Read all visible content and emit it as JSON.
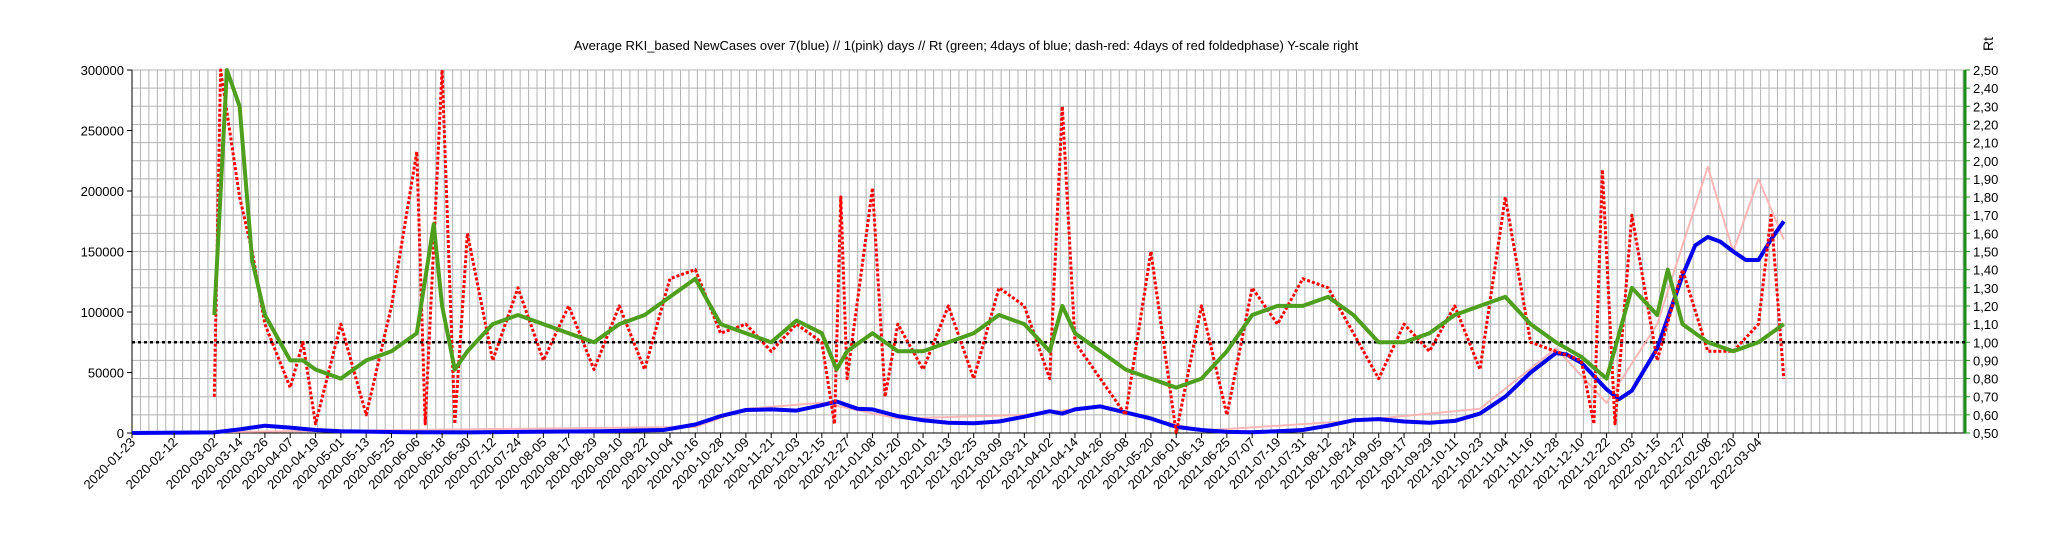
{
  "chart_data": {
    "type": "line",
    "title": "Average RKI_based NewCases over 7(blue) // 1(pink) days //  Rt (green; 4days of blue; dash-red: 4days of red foldedphase) Y-scale right",
    "ylabel_right": "Rt",
    "ylim_left": [
      0,
      300000
    ],
    "ylim_right": [
      0.5,
      2.5
    ],
    "y_ticks_left": [
      "0",
      "50000",
      "100000",
      "150000",
      "200000",
      "250000",
      "300000"
    ],
    "y_ticks_right": [
      "0,50",
      "0,60",
      "0,70",
      "0,80",
      "0,90",
      "1,00",
      "1,10",
      "1,20",
      "1,30",
      "1,40",
      "1,50",
      "1,60",
      "1,70",
      "1,80",
      "1,90",
      "2,00",
      "2,10",
      "2,20",
      "2,30",
      "2,40",
      "2,50"
    ],
    "x_ticks": [
      "2020-01-23",
      "2020-02-12",
      "2020-03-02",
      "2020-03-14",
      "2020-03-26",
      "2020-04-07",
      "2020-04-19",
      "2020-05-01",
      "2020-05-13",
      "2020-05-25",
      "2020-06-06",
      "2020-06-18",
      "2020-06-30",
      "2020-07-12",
      "2020-07-24",
      "2020-08-05",
      "2020-08-17",
      "2020-08-29",
      "2020-09-10",
      "2020-09-22",
      "2020-10-04",
      "2020-10-16",
      "2020-10-28",
      "2020-11-09",
      "2020-11-21",
      "2020-12-03",
      "2020-12-15",
      "2020-12-27",
      "2021-01-08",
      "2021-01-20",
      "2021-02-01",
      "2021-02-13",
      "2021-02-25",
      "2021-03-09",
      "2021-03-21",
      "2021-04-02",
      "2021-04-14",
      "2021-04-26",
      "2021-05-08",
      "2021-05-20",
      "2021-06-01",
      "2021-06-13",
      "2021-06-25",
      "2021-07-07",
      "2021-07-19",
      "2021-07-31",
      "2021-08-12",
      "2021-08-24",
      "2021-09-05",
      "2021-09-17",
      "2021-09-29",
      "2021-10-11",
      "2021-10-23",
      "2021-11-04",
      "2021-11-16",
      "2021-11-28",
      "2021-12-10",
      "2021-12-22",
      "2022-01-03",
      "2022-01-15",
      "2022-01-27",
      "2022-02-08",
      "2022-02-20",
      "2022-03-04"
    ],
    "reference_line_rt": 1.0,
    "grid": true,
    "series": [
      {
        "axis": "left",
        "color": "#0000ee",
        "style": "solid",
        "points": [
          [
            "2020-01-23",
            0
          ],
          [
            "2020-03-02",
            500
          ],
          [
            "2020-03-14",
            3000
          ],
          [
            "2020-03-26",
            6000
          ],
          [
            "2020-04-07",
            4500
          ],
          [
            "2020-04-19",
            2500
          ],
          [
            "2020-05-01",
            1500
          ],
          [
            "2020-06-01",
            700
          ],
          [
            "2020-07-01",
            500
          ],
          [
            "2020-08-01",
            1000
          ],
          [
            "2020-09-01",
            1500
          ],
          [
            "2020-10-01",
            2500
          ],
          [
            "2020-10-16",
            7000
          ],
          [
            "2020-10-28",
            14000
          ],
          [
            "2020-11-09",
            19000
          ],
          [
            "2020-11-21",
            19500
          ],
          [
            "2020-12-03",
            18500
          ],
          [
            "2020-12-15",
            23000
          ],
          [
            "2020-12-22",
            26000
          ],
          [
            "2021-01-01",
            20000
          ],
          [
            "2021-01-08",
            19500
          ],
          [
            "2021-01-20",
            14000
          ],
          [
            "2021-02-01",
            10500
          ],
          [
            "2021-02-13",
            8500
          ],
          [
            "2021-02-25",
            8000
          ],
          [
            "2021-03-09",
            9500
          ],
          [
            "2021-03-21",
            13500
          ],
          [
            "2021-04-02",
            18000
          ],
          [
            "2021-04-08",
            16000
          ],
          [
            "2021-04-14",
            19500
          ],
          [
            "2021-04-26",
            22000
          ],
          [
            "2021-05-08",
            17000
          ],
          [
            "2021-05-20",
            12000
          ],
          [
            "2021-06-01",
            5000
          ],
          [
            "2021-06-13",
            2500
          ],
          [
            "2021-06-25",
            900
          ],
          [
            "2021-07-07",
            700
          ],
          [
            "2021-07-19",
            1500
          ],
          [
            "2021-07-31",
            2500
          ],
          [
            "2021-08-12",
            6000
          ],
          [
            "2021-08-24",
            10500
          ],
          [
            "2021-09-05",
            11500
          ],
          [
            "2021-09-17",
            9500
          ],
          [
            "2021-09-29",
            8500
          ],
          [
            "2021-10-11",
            10000
          ],
          [
            "2021-10-23",
            16000
          ],
          [
            "2021-11-04",
            30000
          ],
          [
            "2021-11-16",
            50000
          ],
          [
            "2021-11-28",
            66000
          ],
          [
            "2021-12-03",
            65000
          ],
          [
            "2021-12-10",
            58000
          ],
          [
            "2021-12-22",
            36000
          ],
          [
            "2021-12-28",
            28000
          ],
          [
            "2022-01-03",
            35000
          ],
          [
            "2022-01-15",
            70000
          ],
          [
            "2022-01-27",
            130000
          ],
          [
            "2022-02-02",
            155000
          ],
          [
            "2022-02-08",
            162000
          ],
          [
            "2022-02-14",
            158000
          ],
          [
            "2022-02-20",
            150000
          ],
          [
            "2022-02-26",
            143000
          ],
          [
            "2022-03-04",
            143000
          ],
          [
            "2022-03-10",
            160000
          ],
          [
            "2022-03-14",
            170000
          ],
          [
            "2022-03-16",
            175000
          ]
        ]
      },
      {
        "axis": "left",
        "color": "#ffb0b0",
        "style": "solid",
        "points": [
          [
            "2020-01-23",
            0
          ],
          [
            "2020-10-16",
            5000
          ],
          [
            "2020-11-09",
            20000
          ],
          [
            "2020-12-15",
            25000
          ],
          [
            "2021-01-20",
            12000
          ],
          [
            "2021-03-21",
            15000
          ],
          [
            "2021-04-26",
            22000
          ],
          [
            "2021-06-13",
            2000
          ],
          [
            "2021-08-24",
            10000
          ],
          [
            "2021-10-23",
            20000
          ],
          [
            "2021-11-28",
            70000
          ],
          [
            "2021-12-22",
            25000
          ],
          [
            "2022-01-15",
            90000
          ],
          [
            "2022-02-08",
            220000
          ],
          [
            "2022-02-20",
            150000
          ],
          [
            "2022-03-04",
            210000
          ],
          [
            "2022-03-16",
            160000
          ]
        ]
      },
      {
        "axis": "right",
        "color": "#4f9f1f",
        "style": "solid",
        "points": [
          [
            "2020-03-02",
            1.15
          ],
          [
            "2020-03-08",
            2.5
          ],
          [
            "2020-03-14",
            2.3
          ],
          [
            "2020-03-20",
            1.45
          ],
          [
            "2020-03-26",
            1.15
          ],
          [
            "2020-04-07",
            0.9
          ],
          [
            "2020-04-13",
            0.9
          ],
          [
            "2020-04-19",
            0.85
          ],
          [
            "2020-05-01",
            0.8
          ],
          [
            "2020-05-13",
            0.9
          ],
          [
            "2020-05-25",
            0.95
          ],
          [
            "2020-06-06",
            1.05
          ],
          [
            "2020-06-14",
            1.65
          ],
          [
            "2020-06-18",
            1.2
          ],
          [
            "2020-06-24",
            0.85
          ],
          [
            "2020-06-30",
            0.95
          ],
          [
            "2020-07-12",
            1.1
          ],
          [
            "2020-07-24",
            1.15
          ],
          [
            "2020-08-05",
            1.1
          ],
          [
            "2020-08-17",
            1.05
          ],
          [
            "2020-08-29",
            1.0
          ],
          [
            "2020-09-10",
            1.1
          ],
          [
            "2020-09-22",
            1.15
          ],
          [
            "2020-10-04",
            1.25
          ],
          [
            "2020-10-16",
            1.35
          ],
          [
            "2020-10-28",
            1.1
          ],
          [
            "2020-11-09",
            1.05
          ],
          [
            "2020-11-21",
            1.0
          ],
          [
            "2020-12-03",
            1.12
          ],
          [
            "2020-12-15",
            1.05
          ],
          [
            "2020-12-22",
            0.85
          ],
          [
            "2020-12-27",
            0.95
          ],
          [
            "2021-01-08",
            1.05
          ],
          [
            "2021-01-20",
            0.95
          ],
          [
            "2021-02-01",
            0.95
          ],
          [
            "2021-02-13",
            1.0
          ],
          [
            "2021-02-25",
            1.05
          ],
          [
            "2021-03-09",
            1.15
          ],
          [
            "2021-03-21",
            1.1
          ],
          [
            "2021-04-02",
            0.95
          ],
          [
            "2021-04-08",
            1.2
          ],
          [
            "2021-04-14",
            1.05
          ],
          [
            "2021-04-26",
            0.95
          ],
          [
            "2021-05-08",
            0.85
          ],
          [
            "2021-05-20",
            0.8
          ],
          [
            "2021-06-01",
            0.75
          ],
          [
            "2021-06-13",
            0.8
          ],
          [
            "2021-06-25",
            0.95
          ],
          [
            "2021-07-07",
            1.15
          ],
          [
            "2021-07-19",
            1.2
          ],
          [
            "2021-07-31",
            1.2
          ],
          [
            "2021-08-12",
            1.25
          ],
          [
            "2021-08-24",
            1.15
          ],
          [
            "2021-09-05",
            1.0
          ],
          [
            "2021-09-17",
            1.0
          ],
          [
            "2021-09-29",
            1.05
          ],
          [
            "2021-10-11",
            1.15
          ],
          [
            "2021-10-23",
            1.2
          ],
          [
            "2021-11-04",
            1.25
          ],
          [
            "2021-11-16",
            1.1
          ],
          [
            "2021-11-28",
            1.0
          ],
          [
            "2021-12-10",
            0.92
          ],
          [
            "2021-12-22",
            0.8
          ],
          [
            "2022-01-03",
            1.3
          ],
          [
            "2022-01-15",
            1.15
          ],
          [
            "2022-01-20",
            1.4
          ],
          [
            "2022-01-27",
            1.1
          ],
          [
            "2022-02-08",
            1.0
          ],
          [
            "2022-02-20",
            0.95
          ],
          [
            "2022-03-04",
            1.0
          ],
          [
            "2022-03-16",
            1.1
          ]
        ]
      },
      {
        "axis": "right",
        "color": "#ff0000",
        "style": "dotted",
        "points": [
          [
            "2020-03-02",
            0.7
          ],
          [
            "2020-03-05",
            2.5
          ],
          [
            "2020-03-14",
            1.8
          ],
          [
            "2020-03-20",
            1.5
          ],
          [
            "2020-03-26",
            1.1
          ],
          [
            "2020-04-07",
            0.75
          ],
          [
            "2020-04-13",
            1.0
          ],
          [
            "2020-04-19",
            0.55
          ],
          [
            "2020-05-01",
            1.1
          ],
          [
            "2020-05-13",
            0.6
          ],
          [
            "2020-05-25",
            1.2
          ],
          [
            "2020-06-06",
            2.05
          ],
          [
            "2020-06-10",
            0.55
          ],
          [
            "2020-06-18",
            2.5
          ],
          [
            "2020-06-24",
            0.55
          ],
          [
            "2020-06-30",
            1.6
          ],
          [
            "2020-07-12",
            0.9
          ],
          [
            "2020-07-24",
            1.3
          ],
          [
            "2020-08-05",
            0.9
          ],
          [
            "2020-08-17",
            1.2
          ],
          [
            "2020-08-29",
            0.85
          ],
          [
            "2020-09-10",
            1.2
          ],
          [
            "2020-09-22",
            0.85
          ],
          [
            "2020-10-04",
            1.35
          ],
          [
            "2020-10-16",
            1.4
          ],
          [
            "2020-10-28",
            1.05
          ],
          [
            "2020-11-09",
            1.1
          ],
          [
            "2020-11-21",
            0.95
          ],
          [
            "2020-12-03",
            1.1
          ],
          [
            "2020-12-15",
            1.0
          ],
          [
            "2020-12-21",
            0.55
          ],
          [
            "2020-12-24",
            1.8
          ],
          [
            "2020-12-27",
            0.8
          ],
          [
            "2021-01-08",
            1.85
          ],
          [
            "2021-01-14",
            0.7
          ],
          [
            "2021-01-20",
            1.1
          ],
          [
            "2021-02-01",
            0.85
          ],
          [
            "2021-02-13",
            1.2
          ],
          [
            "2021-02-25",
            0.8
          ],
          [
            "2021-03-09",
            1.3
          ],
          [
            "2021-03-21",
            1.2
          ],
          [
            "2021-04-02",
            0.8
          ],
          [
            "2021-04-08",
            2.3
          ],
          [
            "2021-04-14",
            1.0
          ],
          [
            "2021-04-26",
            0.8
          ],
          [
            "2021-05-08",
            0.6
          ],
          [
            "2021-05-20",
            1.5
          ],
          [
            "2021-06-01",
            0.5
          ],
          [
            "2021-06-13",
            1.2
          ],
          [
            "2021-06-25",
            0.6
          ],
          [
            "2021-07-07",
            1.3
          ],
          [
            "2021-07-19",
            1.1
          ],
          [
            "2021-07-31",
            1.35
          ],
          [
            "2021-08-12",
            1.3
          ],
          [
            "2021-08-24",
            1.05
          ],
          [
            "2021-09-05",
            0.8
          ],
          [
            "2021-09-17",
            1.1
          ],
          [
            "2021-09-29",
            0.95
          ],
          [
            "2021-10-11",
            1.2
          ],
          [
            "2021-10-23",
            0.85
          ],
          [
            "2021-11-04",
            1.8
          ],
          [
            "2021-11-16",
            1.0
          ],
          [
            "2021-11-28",
            0.95
          ],
          [
            "2021-12-10",
            0.9
          ],
          [
            "2021-12-16",
            0.55
          ],
          [
            "2021-12-20",
            1.95
          ],
          [
            "2021-12-26",
            0.55
          ],
          [
            "2022-01-03",
            1.7
          ],
          [
            "2022-01-15",
            0.9
          ],
          [
            "2022-01-27",
            1.4
          ],
          [
            "2022-02-08",
            0.95
          ],
          [
            "2022-02-20",
            0.95
          ],
          [
            "2022-03-04",
            1.1
          ],
          [
            "2022-03-10",
            1.7
          ],
          [
            "2022-03-16",
            0.8
          ]
        ]
      }
    ]
  }
}
